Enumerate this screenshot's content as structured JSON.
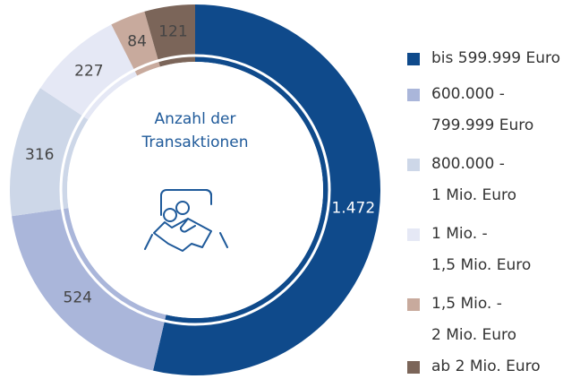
{
  "chart_data": {
    "type": "donut",
    "title": "Anzahl der\nTransaktionen",
    "series": [
      {
        "name": "bis 599.999 Euro",
        "color": "#0f4a8b"
      },
      {
        "name": "600.000 -\n799.999 Euro",
        "color": "#aab6da"
      },
      {
        "name": "800.000 -\n1 Mio. Euro",
        "color": "#cdd7e8"
      },
      {
        "name": "1 Mio. -\n1,5 Mio. Euro",
        "color": "#e5e8f5"
      },
      {
        "name": "1,5 Mio. -\n2 Mio. Euro",
        "color": "#c8aa9d"
      },
      {
        "name": "ab 2 Mio. Euro",
        "color": "#7b6559"
      }
    ],
    "values": [
      1472,
      524,
      316,
      227,
      84,
      121
    ],
    "value_labels": [
      "1.472",
      "524",
      "316",
      "227",
      "84",
      "121"
    ]
  }
}
